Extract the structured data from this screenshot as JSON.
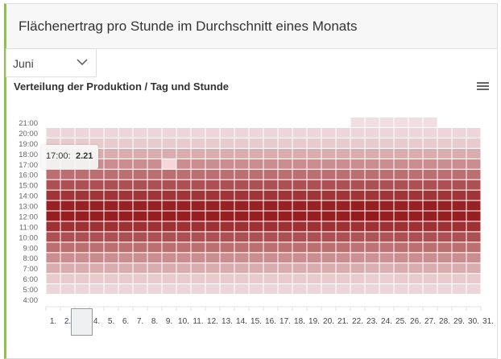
{
  "header": {
    "title": "Flächenertrag pro Stunde im Durchschnitt eines Monats"
  },
  "month_select": {
    "value": "Juni",
    "icon": "chevron-down-icon"
  },
  "menu_icon": "hamburger-menu-icon",
  "tooltip": {
    "label": "17:00:",
    "value": "2.21"
  },
  "chart_data": {
    "type": "heatmap",
    "title": "Verteilung der Produktion / Tag und Stunde",
    "x_categories": [
      "1.",
      "2.",
      "3.",
      "4.",
      "5.",
      "6.",
      "7.",
      "8.",
      "9.",
      "10.",
      "11.",
      "12.",
      "13.",
      "14.",
      "15.",
      "16.",
      "17.",
      "18.",
      "19.",
      "20.",
      "21.",
      "22.",
      "23.",
      "24.",
      "25.",
      "26.",
      "27.",
      "28.",
      "29.",
      "30.",
      "31."
    ],
    "y_categories": [
      "4:00",
      "5:00",
      "6:00",
      "7:00",
      "8:00",
      "9:00",
      "10:00",
      "11:00",
      "12:00",
      "13:00",
      "14:00",
      "15:00",
      "16:00",
      "17:00",
      "18:00",
      "19:00",
      "20:00",
      "21:00"
    ],
    "color_min": "#f3e2e4",
    "color_max": "#931a1d",
    "value_range": [
      0,
      5.2
    ],
    "highlight": {
      "day": "3.",
      "hour": "17:00",
      "value": 2.21
    },
    "rows": [
      {
        "hour": "5:00",
        "values": [
          0.3,
          0.3,
          0.3,
          0.3,
          0.3,
          0.3,
          0.3,
          0.3,
          0.3,
          0.3,
          0.3,
          0.3,
          0.3,
          0.3,
          0.3,
          0.3,
          0.3,
          0.3,
          0.3,
          0.3,
          0.3,
          0.3,
          0.3,
          0.3,
          0.3,
          0.3,
          0.3,
          0.3,
          0.3,
          0.3
        ]
      },
      {
        "hour": "6:00",
        "values": [
          0.6,
          0.6,
          0.6,
          0.6,
          0.6,
          0.6,
          0.6,
          0.6,
          0.6,
          0.6,
          0.6,
          0.6,
          0.6,
          0.6,
          0.6,
          0.6,
          0.6,
          0.6,
          0.6,
          0.6,
          0.6,
          0.6,
          0.5,
          0.5,
          0.6,
          0.6,
          0.6,
          0.6,
          0.6,
          0.6
        ]
      },
      {
        "hour": "7:00",
        "values": [
          1.4,
          1.4,
          1.4,
          1.4,
          1.4,
          1.4,
          1.4,
          1.4,
          1.4,
          1.4,
          1.4,
          1.4,
          1.4,
          1.4,
          1.4,
          1.4,
          1.4,
          1.4,
          1.4,
          1.4,
          1.4,
          1.4,
          1.3,
          1.3,
          1.4,
          1.4,
          1.4,
          1.4,
          1.4,
          1.4
        ]
      },
      {
        "hour": "8:00",
        "values": [
          2.2,
          2.2,
          2.2,
          2.3,
          2.2,
          2.2,
          2.2,
          2.2,
          2.2,
          2.2,
          2.2,
          2.2,
          2.2,
          2.2,
          2.2,
          2.2,
          2.2,
          2.2,
          2.2,
          2.2,
          2.2,
          2.1,
          2.1,
          2.1,
          2.2,
          2.2,
          2.2,
          2.2,
          2.2,
          2.2
        ]
      },
      {
        "hour": "9:00",
        "values": [
          3.0,
          3.0,
          3.0,
          3.0,
          3.0,
          3.0,
          3.0,
          3.0,
          3.0,
          3.0,
          3.0,
          3.0,
          3.0,
          3.0,
          3.0,
          3.0,
          3.0,
          3.0,
          3.0,
          3.0,
          3.0,
          2.9,
          2.9,
          2.9,
          3.0,
          3.0,
          3.0,
          3.0,
          3.0,
          3.0
        ]
      },
      {
        "hour": "10:00",
        "values": [
          3.8,
          3.8,
          3.8,
          3.8,
          3.8,
          3.8,
          3.8,
          3.8,
          3.8,
          3.8,
          3.8,
          3.8,
          3.8,
          3.8,
          3.8,
          3.8,
          3.8,
          3.8,
          3.8,
          3.8,
          3.8,
          3.7,
          3.7,
          3.7,
          3.8,
          3.8,
          3.8,
          3.8,
          3.8,
          3.8
        ]
      },
      {
        "hour": "11:00",
        "values": [
          4.6,
          4.6,
          4.6,
          4.6,
          4.6,
          4.6,
          4.6,
          4.6,
          4.6,
          4.6,
          4.6,
          4.6,
          4.6,
          4.6,
          4.6,
          4.6,
          4.6,
          4.6,
          4.6,
          4.6,
          4.6,
          4.6,
          4.6,
          4.6,
          4.6,
          4.6,
          4.6,
          4.6,
          4.6,
          4.6
        ]
      },
      {
        "hour": "12:00",
        "values": [
          5.1,
          5.1,
          5.1,
          5.1,
          5.1,
          5.1,
          5.1,
          5.1,
          5.1,
          5.1,
          5.1,
          5.1,
          5.1,
          5.1,
          5.1,
          5.1,
          5.1,
          5.1,
          5.1,
          5.1,
          5.1,
          5.2,
          5.2,
          5.1,
          5.1,
          5.1,
          5.1,
          5.1,
          5.1,
          5.1
        ]
      },
      {
        "hour": "13:00",
        "values": [
          5.0,
          5.0,
          5.0,
          5.0,
          5.0,
          5.0,
          5.0,
          5.0,
          5.0,
          5.0,
          5.0,
          5.0,
          5.0,
          5.0,
          5.0,
          5.0,
          5.0,
          5.0,
          5.0,
          5.0,
          5.0,
          5.1,
          5.1,
          5.0,
          5.0,
          5.0,
          5.1,
          5.0,
          5.0,
          5.0
        ]
      },
      {
        "hour": "14:00",
        "values": [
          4.5,
          4.5,
          4.5,
          4.5,
          4.5,
          4.5,
          4.5,
          4.5,
          4.5,
          4.5,
          4.5,
          4.5,
          4.5,
          4.5,
          4.5,
          4.5,
          4.5,
          4.5,
          4.5,
          4.5,
          4.5,
          4.5,
          4.5,
          4.5,
          4.5,
          4.5,
          4.5,
          4.5,
          4.5,
          4.5
        ]
      },
      {
        "hour": "15:00",
        "values": [
          3.8,
          3.8,
          3.8,
          3.8,
          3.8,
          3.8,
          3.8,
          3.8,
          3.8,
          3.8,
          3.8,
          3.8,
          3.8,
          3.8,
          3.8,
          3.8,
          3.8,
          3.8,
          3.8,
          3.8,
          3.8,
          3.8,
          3.8,
          3.8,
          3.8,
          3.8,
          3.8,
          3.8,
          3.8,
          3.8
        ]
      },
      {
        "hour": "16:00",
        "values": [
          3.0,
          3.0,
          3.0,
          3.0,
          3.0,
          3.0,
          3.0,
          3.0,
          3.0,
          3.0,
          3.0,
          3.0,
          3.0,
          3.0,
          3.0,
          3.0,
          3.0,
          3.0,
          3.0,
          3.0,
          3.0,
          3.0,
          3.0,
          3.0,
          3.0,
          3.0,
          3.0,
          3.0,
          3.0,
          3.0
        ]
      },
      {
        "hour": "17:00",
        "values": [
          2.2,
          2.2,
          2.21,
          2.2,
          2.2,
          2.2,
          2.2,
          2.2,
          0.5,
          2.2,
          2.2,
          2.2,
          2.2,
          2.2,
          2.2,
          2.2,
          2.2,
          2.2,
          2.2,
          2.2,
          2.2,
          2.2,
          2.2,
          2.2,
          2.2,
          2.2,
          2.2,
          2.2,
          2.2,
          2.2
        ]
      },
      {
        "hour": "18:00",
        "values": [
          1.4,
          1.4,
          1.4,
          1.4,
          1.4,
          1.4,
          1.4,
          1.4,
          1.4,
          1.4,
          1.4,
          1.4,
          1.4,
          1.4,
          1.4,
          1.4,
          1.4,
          1.4,
          1.4,
          1.4,
          1.4,
          1.4,
          1.4,
          1.4,
          1.4,
          1.4,
          1.4,
          1.4,
          1.4,
          1.4
        ]
      },
      {
        "hour": "19:00",
        "values": [
          0.6,
          0.6,
          0.6,
          0.6,
          0.6,
          0.6,
          0.6,
          0.6,
          0.6,
          0.6,
          0.6,
          0.6,
          0.6,
          0.6,
          0.6,
          0.6,
          0.6,
          0.6,
          0.6,
          0.6,
          0.6,
          0.6,
          0.6,
          0.6,
          0.6,
          0.6,
          0.6,
          0.6,
          0.6,
          0.6
        ]
      },
      {
        "hour": "20:00",
        "values": [
          0.3,
          0.3,
          0.3,
          0.3,
          0.3,
          0.3,
          0.3,
          0.3,
          0.3,
          0.3,
          0.3,
          0.3,
          0.3,
          0.3,
          0.3,
          0.3,
          0.3,
          0.3,
          0.3,
          0.3,
          0.3,
          0.3,
          0.3,
          0.3,
          0.3,
          0.3,
          0.3,
          0.3,
          0.3,
          0.3
        ]
      },
      {
        "hour": "21:00",
        "values": [
          null,
          null,
          null,
          null,
          null,
          null,
          null,
          null,
          null,
          null,
          null,
          null,
          null,
          null,
          null,
          null,
          null,
          null,
          null,
          null,
          null,
          0.1,
          0.1,
          0.1,
          0.1,
          0.1,
          0.1,
          null,
          null,
          null
        ]
      }
    ]
  }
}
